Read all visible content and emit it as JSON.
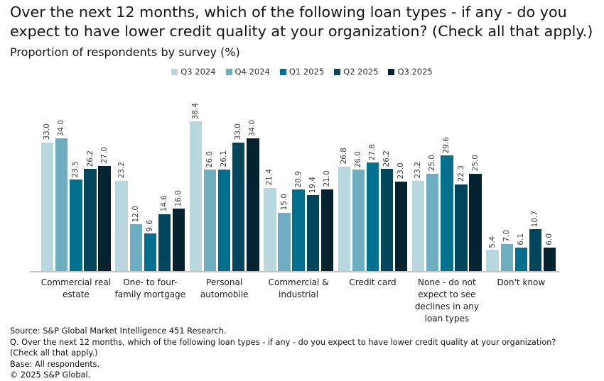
{
  "title": "Over the next 12 months, which of the following loan types - if any - do you expect to have lower credit quality at your organization? (Check all that apply.)",
  "title_lines": [
    "Over the next 12 months, which of the following loan types - if any - do you",
    "expect to have lower credit quality at your organization? (Check all that apply.)"
  ],
  "subtitle": "Proportion of respondents by survey (%)",
  "chart_data": {
    "type": "bar",
    "categories": [
      "Commercial real estate",
      "One- to four-family mortgage",
      "Personal automobile",
      "Commercial & industrial",
      "Credit card",
      "None - do not expect to see declines in any loan types",
      "Don't know"
    ],
    "category_label_lines": [
      [
        "Commercial real",
        "estate"
      ],
      [
        "One- to four-",
        "family mortgage"
      ],
      [
        "Personal",
        "automobile"
      ],
      [
        "Commercial &",
        "industrial"
      ],
      [
        "Credit card"
      ],
      [
        "None - do not",
        "expect to see",
        "declines in any",
        "loan types"
      ],
      [
        "Don't know"
      ]
    ],
    "series": [
      {
        "name": "Q3 2024",
        "color": "#b9d7df",
        "values": [
          33.0,
          23.2,
          38.4,
          21.4,
          26.8,
          23.2,
          5.4
        ]
      },
      {
        "name": "Q4 2024",
        "color": "#6fadc0",
        "values": [
          34.0,
          12.0,
          26.0,
          15.0,
          26.0,
          25.0,
          7.0
        ]
      },
      {
        "name": "Q1 2025",
        "color": "#00708f",
        "values": [
          23.5,
          9.6,
          26.1,
          20.9,
          27.8,
          29.6,
          6.1
        ]
      },
      {
        "name": "Q2 2025",
        "color": "#00455c",
        "values": [
          26.2,
          14.6,
          33.0,
          19.4,
          26.2,
          22.3,
          10.7
        ]
      },
      {
        "name": "Q3 2025",
        "color": "#04222f",
        "values": [
          27.0,
          16.0,
          34.0,
          21.0,
          23.0,
          25.0,
          6.0
        ]
      }
    ],
    "value_labels": true,
    "ylim": [
      0,
      40
    ],
    "grid": false,
    "legend_position": "top-center"
  },
  "footer": {
    "lines": [
      "Source: S&P Global Market Intelligence 451 Research.",
      "Q. Over the next 12 months, which of the following loan types - if any - do you expect to have lower credit quality at your organization?",
      "(Check all that apply.)",
      "Base: All respondents.",
      "© 2025 S&P Global."
    ]
  }
}
